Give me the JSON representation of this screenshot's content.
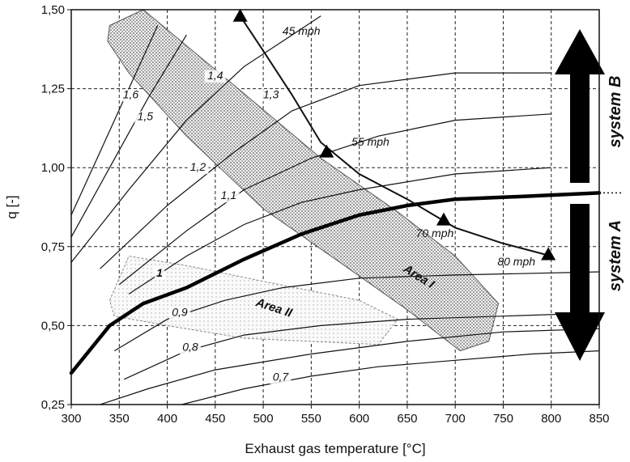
{
  "chart_data": {
    "type": "line",
    "title": "",
    "xlabel": "Exhaust gas temperature [°C]",
    "ylabel": "q [-]",
    "xlim": [
      300,
      850
    ],
    "ylim": [
      0.25,
      1.5
    ],
    "grid": true,
    "x_ticks": [
      "300",
      "350",
      "400",
      "450",
      "500",
      "550",
      "600",
      "650",
      "700",
      "750",
      "800",
      "850"
    ],
    "y_ticks": [
      {
        "value": 0.25,
        "label": "0,25"
      },
      {
        "value": 0.5,
        "label": "0,50"
      },
      {
        "value": 0.75,
        "label": "0,75"
      },
      {
        "value": 1.0,
        "label": "1,00"
      },
      {
        "value": 1.25,
        "label": "1,25"
      },
      {
        "value": 1.5,
        "label": "1,50"
      }
    ],
    "contours": [
      {
        "name": "",
        "label": "1,6",
        "label_at": [
          362,
          1.22
        ],
        "points": [
          [
            300,
            0.85
          ],
          [
            330,
            1.05
          ],
          [
            360,
            1.25
          ],
          [
            390,
            1.45
          ]
        ]
      },
      {
        "name": "",
        "label": "1,5",
        "label_at": [
          377,
          1.15
        ],
        "points": [
          [
            300,
            0.78
          ],
          [
            340,
            1.0
          ],
          [
            380,
            1.22
          ],
          [
            420,
            1.42
          ]
        ]
      },
      {
        "name": "",
        "label": "1,4",
        "label_at": [
          450,
          1.28
        ],
        "points": [
          [
            300,
            0.7
          ],
          [
            360,
            0.93
          ],
          [
            420,
            1.15
          ],
          [
            480,
            1.32
          ],
          [
            530,
            1.42
          ],
          [
            560,
            1.48
          ]
        ]
      },
      {
        "name": "",
        "label": "1,3",
        "label_at": [
          508,
          1.22
        ],
        "points": [
          [
            330,
            0.68
          ],
          [
            400,
            0.88
          ],
          [
            470,
            1.05
          ],
          [
            530,
            1.18
          ],
          [
            600,
            1.26
          ],
          [
            700,
            1.3
          ],
          [
            800,
            1.3
          ]
        ]
      },
      {
        "name": "",
        "label": "1,2",
        "label_at": [
          432,
          0.99
        ],
        "points": [
          [
            350,
            0.63
          ],
          [
            420,
            0.8
          ],
          [
            480,
            0.93
          ],
          [
            550,
            1.03
          ],
          [
            620,
            1.1
          ],
          [
            700,
            1.15
          ],
          [
            800,
            1.17
          ]
        ]
      },
      {
        "name": "",
        "label": "1,1",
        "label_at": [
          464,
          0.9
        ],
        "points": [
          [
            360,
            0.6
          ],
          [
            420,
            0.72
          ],
          [
            480,
            0.82
          ],
          [
            540,
            0.89
          ],
          [
            600,
            0.93
          ],
          [
            700,
            0.98
          ],
          [
            800,
            1.0
          ]
        ]
      },
      {
        "name": "",
        "label": "1",
        "label_at": [
          392,
          0.655
        ],
        "bold": true,
        "points": [
          [
            300,
            0.35
          ],
          [
            340,
            0.5
          ],
          [
            375,
            0.57
          ],
          [
            420,
            0.62
          ],
          [
            480,
            0.71
          ],
          [
            540,
            0.79
          ],
          [
            600,
            0.85
          ],
          [
            650,
            0.88
          ],
          [
            700,
            0.9
          ],
          [
            780,
            0.91
          ],
          [
            850,
            0.92
          ]
        ]
      },
      {
        "name": "",
        "label": "0,9",
        "label_at": [
          413,
          0.53
        ],
        "points": [
          [
            345,
            0.42
          ],
          [
            400,
            0.52
          ],
          [
            460,
            0.58
          ],
          [
            520,
            0.62
          ],
          [
            600,
            0.65
          ],
          [
            700,
            0.66
          ],
          [
            850,
            0.67
          ]
        ]
      },
      {
        "name": "",
        "label": "0,8",
        "label_at": [
          424,
          0.42
        ],
        "points": [
          [
            355,
            0.33
          ],
          [
            420,
            0.42
          ],
          [
            480,
            0.47
          ],
          [
            560,
            0.5
          ],
          [
            650,
            0.52
          ],
          [
            750,
            0.53
          ],
          [
            850,
            0.54
          ]
        ]
      },
      {
        "name": "",
        "label": "0,7",
        "label_at": [
          518,
          0.325
        ],
        "points": [
          [
            415,
            0.25
          ],
          [
            480,
            0.3
          ],
          [
            550,
            0.34
          ],
          [
            620,
            0.37
          ],
          [
            700,
            0.39
          ],
          [
            780,
            0.41
          ],
          [
            850,
            0.42
          ]
        ]
      },
      {
        "name": "",
        "label": "",
        "points": [
          [
            330,
            0.25
          ],
          [
            380,
            0.3
          ],
          [
            450,
            0.36
          ],
          [
            550,
            0.41
          ],
          [
            650,
            0.45
          ],
          [
            750,
            0.48
          ],
          [
            850,
            0.49
          ]
        ]
      }
    ],
    "speed_curve": {
      "points": [
        [
          476,
          1.48
        ],
        [
          500,
          1.37
        ],
        [
          530,
          1.23
        ],
        [
          560,
          1.08
        ],
        [
          600,
          0.98
        ],
        [
          650,
          0.9
        ],
        [
          700,
          0.81
        ],
        [
          750,
          0.76
        ],
        [
          800,
          0.72
        ]
      ],
      "markers": [
        {
          "label": "45 mph",
          "x": 476,
          "y": 1.48,
          "label_at": [
            520,
            1.42
          ]
        },
        {
          "label": "55 mph",
          "x": 566,
          "y": 1.05,
          "label_at": [
            592,
            1.07
          ]
        },
        {
          "label": "70 mph",
          "x": 688,
          "y": 0.835,
          "label_at": [
            659,
            0.78
          ]
        },
        {
          "label": "80 mph",
          "x": 797,
          "y": 0.725,
          "label_at": [
            744,
            0.69
          ]
        }
      ]
    },
    "areas": [
      {
        "label": "Area I",
        "label_at": [
          660,
          0.645
        ],
        "rotation": 32
      },
      {
        "label": "Area II",
        "label_at": [
          510,
          0.545
        ],
        "rotation": 18
      }
    ],
    "system_labels": [
      {
        "label": "system B",
        "arrow": "up"
      },
      {
        "label": "system A",
        "arrow": "down"
      }
    ]
  }
}
